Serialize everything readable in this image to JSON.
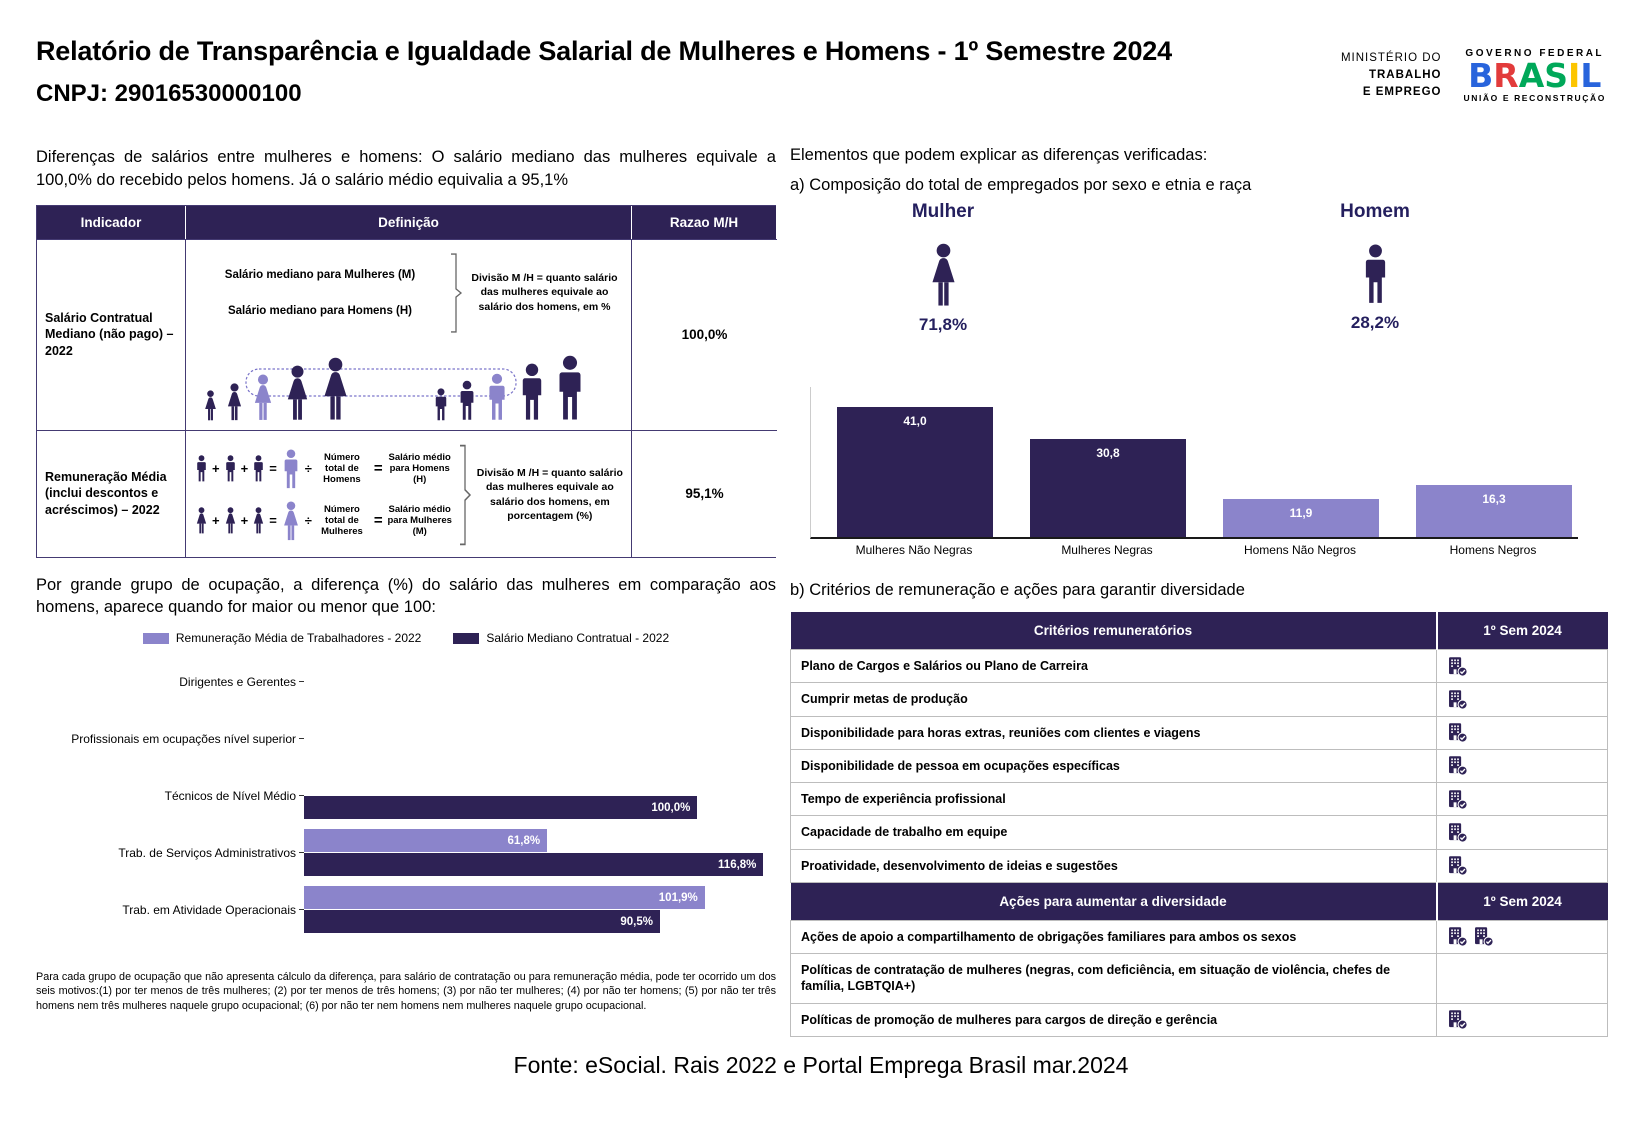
{
  "header": {
    "title": "Relatório de Transparência e Igualdade Salarial de Mulheres e Homens - 1º Semestre 2024",
    "cnpj": "CNPJ: 29016530000100",
    "ministry": [
      "MINISTÉRIO DO",
      "TRABALHO",
      "E EMPREGO"
    ],
    "gov": {
      "top": "GOVERNO FEDERAL",
      "name": "BRASIL",
      "bottom": "UNIÃO E RECONSTRUÇÃO"
    }
  },
  "ops": {
    "plus": "+",
    "equals": "=",
    "divide": "÷"
  },
  "left": {
    "intro": "Diferenças de salários entre mulheres e homens: O salário mediano das mulheres equivale a 100,0% do recebido pelos homens. Já o salário médio equivalia a 95,1%",
    "table": {
      "headers": [
        "Indicador",
        "Definição",
        "Razao M/H"
      ],
      "rows": [
        {
          "indicator": "Salário Contratual Mediano (não pago) – 2022",
          "label_m": "Salário mediano para Mulheres (M)",
          "label_h": "Salário mediano para Homens (H)",
          "formula": "Divisão M /H = quanto salário das mulheres equivale ao salário dos homens, em %",
          "ratio": "100,0%"
        },
        {
          "indicator": "Remuneração Média (inclui descontos e acréscimos) – 2022",
          "num_h": "Número total de Homens",
          "sal_h": "Salário médio para Homens (H)",
          "num_m": "Número total de Mulheres",
          "sal_m": "Salário médio para Mulheres (M)",
          "formula": "Divisão M /H = quanto salário das mulheres equivale ao salário dos homens, em porcentagem (%)",
          "ratio": "95,1%"
        }
      ]
    },
    "occupation_heading": "Por grande grupo de ocupação, a diferença (%) do salário das mulheres em comparação aos homens, aparece quando for maior ou menor que 100:",
    "footnote": "Para cada grupo de ocupação que não apresenta cálculo da diferença, para salário de contratação ou para remuneração média, pode ter ocorrido um dos seis motivos:(1) por ter menos de três mulheres; (2) por ter menos de três homens; (3) por não ter mulheres; (4) por não ter homens; (5) por não ter três homens nem três mulheres naquele grupo ocupacional; (6) por não ter nem homens nem mulheres naquele grupo ocupacional."
  },
  "right": {
    "elements_heading": "Elementos que podem explicar as diferenças verificadas:",
    "composition_heading": "a) Composição do total de empregados por sexo e etnia e raça",
    "gender": {
      "female_label": "Mulher",
      "female_value": "71,8%",
      "male_label": "Homem",
      "male_value": "28,2%"
    },
    "criteria_heading": "b) Critérios de remuneração e ações para garantir diversidade",
    "criteria_table": {
      "value_header": "1º Sem 2024",
      "sections": [
        {
          "header": "Critérios remuneratórios",
          "rows": [
            {
              "label": "Plano de Cargos e Salários ou Plano de Carreira",
              "icons": 1
            },
            {
              "label": "Cumprir metas de produção",
              "icons": 1
            },
            {
              "label": "Disponibilidade para horas extras, reuniões com clientes e viagens",
              "icons": 1
            },
            {
              "label": "Disponibilidade de pessoa em ocupações específicas",
              "icons": 1
            },
            {
              "label": "Tempo de experiência profissional",
              "icons": 1
            },
            {
              "label": "Capacidade de trabalho em equipe",
              "icons": 1
            },
            {
              "label": "Proatividade, desenvolvimento de ideias e sugestões",
              "icons": 1
            }
          ]
        },
        {
          "header": "Ações para aumentar a diversidade",
          "rows": [
            {
              "label": "Ações de apoio a compartilhamento de obrigações familiares para ambos os sexos",
              "icons": 2
            },
            {
              "label": "Políticas de contratação de mulheres (negras, com deficiência, em situação de violência, chefes de família, LGBTQIA+)",
              "icons": 0
            },
            {
              "label": "Políticas de promoção de mulheres para cargos de direção e gerência",
              "icons": 1
            }
          ]
        }
      ]
    }
  },
  "footer": {
    "text": "Fonte: eSocial. Rais 2022 e Portal Emprega Brasil mar.2024"
  },
  "colors": {
    "dark_purple": "#2e2255",
    "light_purple": "#8b84cb",
    "navy_text": "#241f5e"
  },
  "chart_data": [
    {
      "type": "bar",
      "title": "a) Composição do total de empregados por sexo e etnia e raça",
      "categories": [
        "Mulheres Não Negras",
        "Mulheres Negras",
        "Homens Não Negros",
        "Homens Negros"
      ],
      "values": [
        41.0,
        30.8,
        11.9,
        16.3
      ],
      "value_labels": [
        "41,0",
        "30,8",
        "11,9",
        "16,3"
      ],
      "bar_colors": [
        "#2e2255",
        "#2e2255",
        "#8b84cb",
        "#8b84cb"
      ],
      "extra_values": {
        "female_total_pct": 71.8,
        "male_total_pct": 28.2
      },
      "xlabel": "",
      "ylabel": "",
      "ylim": [
        0,
        45
      ],
      "grid": false,
      "legend_position": "none"
    },
    {
      "type": "bar",
      "orientation": "horizontal",
      "title": "Por grande grupo de ocupação, a diferença (%) do salário das mulheres em comparação aos homens, aparece quando for maior ou menor que 100:",
      "categories": [
        "Dirigentes e Gerentes",
        "Profissionais em ocupações nível superior",
        "Técnicos de Nível Médio",
        "Trab. de Serviços Administrativos",
        "Trab. em Atividade Operacionais"
      ],
      "series": [
        {
          "name": "Remuneração Média de Trabalhadores - 2022",
          "color": "#8b84cb",
          "values": [
            null,
            null,
            null,
            61.8,
            101.9
          ],
          "labels": [
            "",
            "",
            "",
            "61,8%",
            "101,9%"
          ]
        },
        {
          "name": "Salário Mediano Contratual - 2022",
          "color": "#2e2255",
          "values": [
            null,
            null,
            100.0,
            116.8,
            90.5
          ],
          "labels": [
            "",
            "",
            "100,0%",
            "116,8%",
            "90,5%"
          ]
        }
      ],
      "xlim": [
        0,
        120
      ],
      "grid": false,
      "legend_position": "top"
    }
  ]
}
